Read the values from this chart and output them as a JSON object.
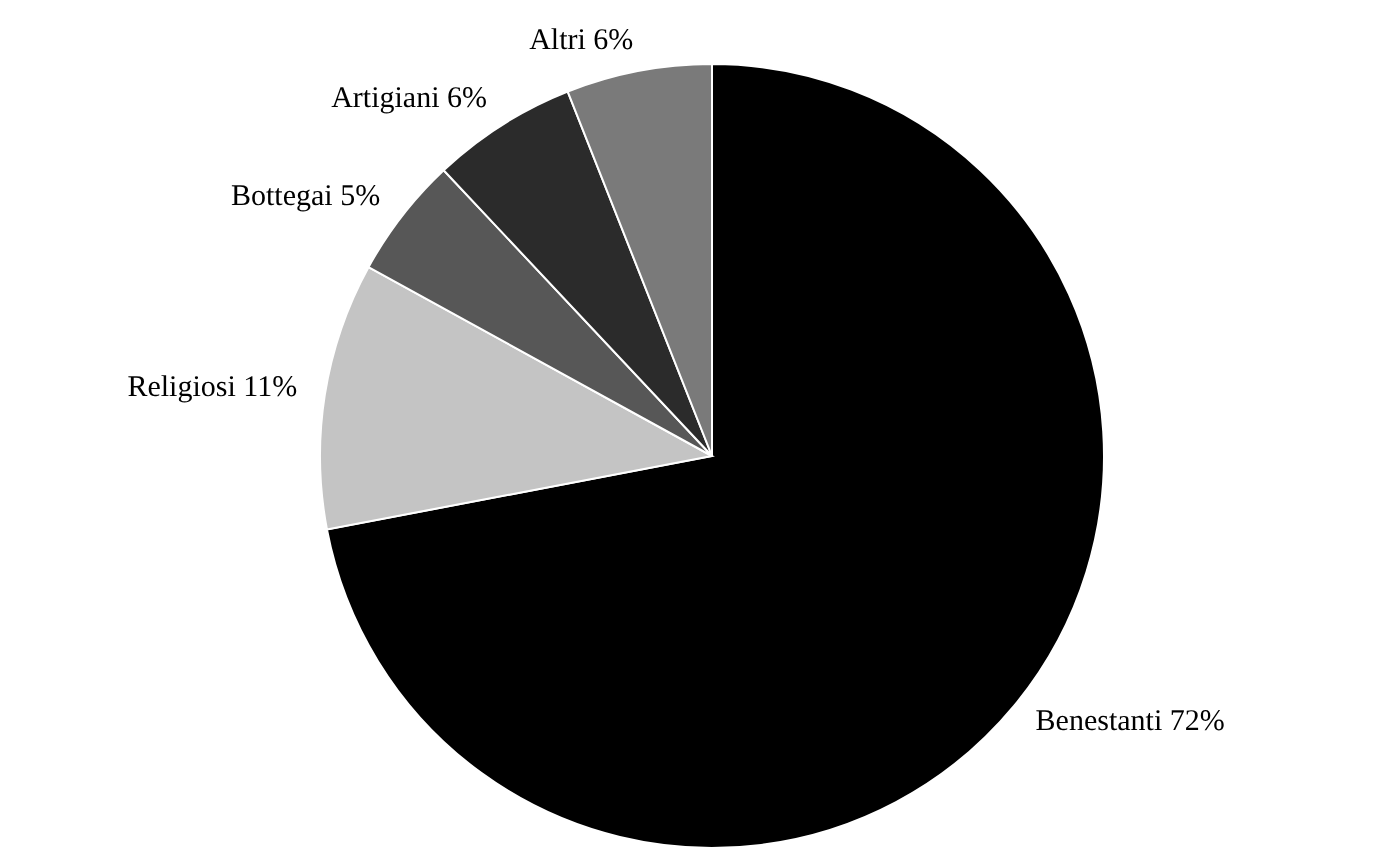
{
  "chart_data": {
    "type": "pie",
    "categories": [
      "Benestanti",
      "Religiosi",
      "Bottegai",
      "Artigiani",
      "Altri"
    ],
    "values": [
      72,
      11,
      5,
      6,
      6
    ],
    "colors": [
      "#000000",
      "#c4c4c4",
      "#575757",
      "#2b2b2b",
      "#7a7a7a"
    ],
    "value_labels": [
      "72%",
      "11%",
      "5%",
      "6%",
      "6%"
    ]
  }
}
